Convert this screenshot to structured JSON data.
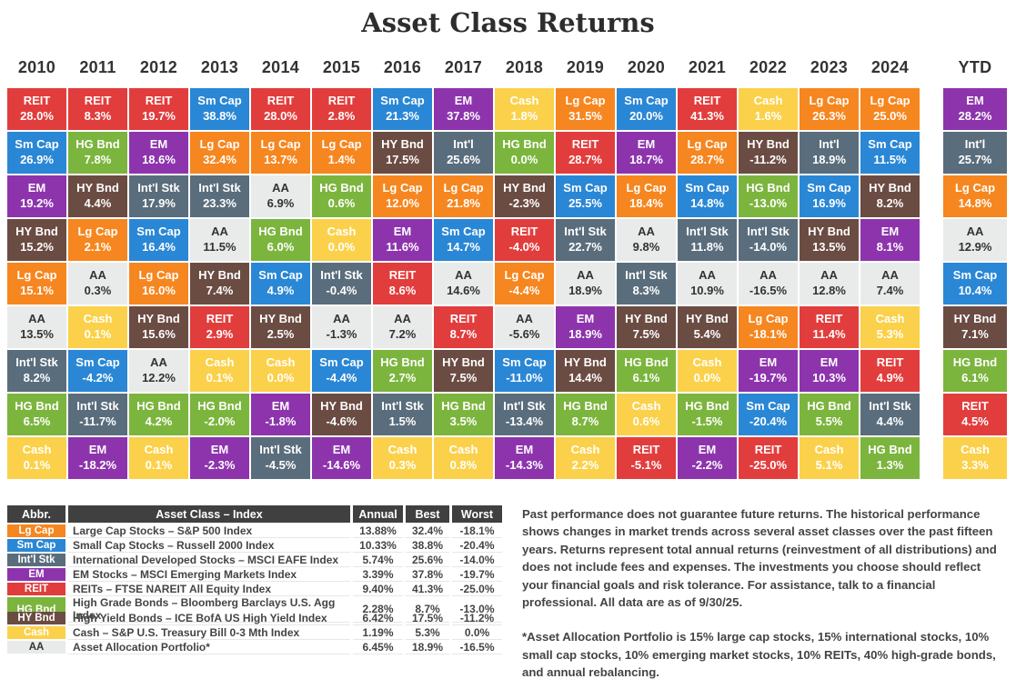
{
  "page_title": "Asset Class Returns",
  "chart_data": {
    "type": "heatmap",
    "title": "Asset Class Returns",
    "description": "Periodic table of annual asset class total returns, ranked best to worst within each year, 2010-2024 plus YTD as of 9/30/25",
    "assets": {
      "lg_cap": {
        "label": "Lg Cap",
        "bg": "#f6861f",
        "fg": "#ffffff"
      },
      "sm_cap": {
        "label": "Sm Cap",
        "bg": "#2a87d5",
        "fg": "#ffffff"
      },
      "intl_stk": {
        "label": "Int'l Stk",
        "bg": "#5a6d7c",
        "fg": "#ffffff"
      },
      "em": {
        "label": "EM",
        "bg": "#8d34ad",
        "fg": "#ffffff"
      },
      "reit": {
        "label": "REIT",
        "bg": "#e23d3d",
        "fg": "#ffffff"
      },
      "hg_bnd": {
        "label": "HG Bnd",
        "bg": "#7cb53e",
        "fg": "#ffffff"
      },
      "hy_bnd": {
        "label": "HY Bnd",
        "bg": "#6b4c43",
        "fg": "#ffffff"
      },
      "cash": {
        "label": "Cash",
        "bg": "#fbd14b",
        "fg": "#ffffff"
      },
      "aa": {
        "label": "AA",
        "bg": "#e9eaea",
        "fg": "#333333"
      }
    },
    "columns": [
      {
        "year": "2010",
        "cells": [
          {
            "asset": "reit",
            "value": "28.0%"
          },
          {
            "asset": "sm_cap",
            "value": "26.9%"
          },
          {
            "asset": "em",
            "value": "19.2%"
          },
          {
            "asset": "hy_bnd",
            "value": "15.2%"
          },
          {
            "asset": "lg_cap",
            "value": "15.1%"
          },
          {
            "asset": "aa",
            "value": "13.5%"
          },
          {
            "asset": "intl_stk",
            "value": "8.2%"
          },
          {
            "asset": "hg_bnd",
            "value": "6.5%"
          },
          {
            "asset": "cash",
            "value": "0.1%"
          }
        ]
      },
      {
        "year": "2011",
        "cells": [
          {
            "asset": "reit",
            "value": "8.3%"
          },
          {
            "asset": "hg_bnd",
            "value": "7.8%"
          },
          {
            "asset": "hy_bnd",
            "value": "4.4%"
          },
          {
            "asset": "lg_cap",
            "value": "2.1%"
          },
          {
            "asset": "aa",
            "value": "0.3%"
          },
          {
            "asset": "cash",
            "value": "0.1%"
          },
          {
            "asset": "sm_cap",
            "value": "-4.2%"
          },
          {
            "asset": "intl_stk",
            "value": "-11.7%"
          },
          {
            "asset": "em",
            "value": "-18.2%"
          }
        ]
      },
      {
        "year": "2012",
        "cells": [
          {
            "asset": "reit",
            "value": "19.7%"
          },
          {
            "asset": "em",
            "value": "18.6%"
          },
          {
            "asset": "intl_stk",
            "value": "17.9%"
          },
          {
            "asset": "sm_cap",
            "value": "16.4%"
          },
          {
            "asset": "lg_cap",
            "value": "16.0%"
          },
          {
            "asset": "hy_bnd",
            "value": "15.6%"
          },
          {
            "asset": "aa",
            "value": "12.2%"
          },
          {
            "asset": "hg_bnd",
            "value": "4.2%"
          },
          {
            "asset": "cash",
            "value": "0.1%"
          }
        ]
      },
      {
        "year": "2013",
        "cells": [
          {
            "asset": "sm_cap",
            "value": "38.8%"
          },
          {
            "asset": "lg_cap",
            "value": "32.4%"
          },
          {
            "asset": "intl_stk",
            "value": "23.3%"
          },
          {
            "asset": "aa",
            "value": "11.5%"
          },
          {
            "asset": "hy_bnd",
            "value": "7.4%"
          },
          {
            "asset": "reit",
            "value": "2.9%"
          },
          {
            "asset": "cash",
            "value": "0.1%"
          },
          {
            "asset": "hg_bnd",
            "value": "-2.0%"
          },
          {
            "asset": "em",
            "value": "-2.3%"
          }
        ]
      },
      {
        "year": "2014",
        "cells": [
          {
            "asset": "reit",
            "value": "28.0%"
          },
          {
            "asset": "lg_cap",
            "value": "13.7%"
          },
          {
            "asset": "aa",
            "value": "6.9%"
          },
          {
            "asset": "hg_bnd",
            "value": "6.0%"
          },
          {
            "asset": "sm_cap",
            "value": "4.9%"
          },
          {
            "asset": "hy_bnd",
            "value": "2.5%"
          },
          {
            "asset": "cash",
            "value": "0.0%"
          },
          {
            "asset": "em",
            "value": "-1.8%"
          },
          {
            "asset": "intl_stk",
            "value": "-4.5%"
          }
        ]
      },
      {
        "year": "2015",
        "cells": [
          {
            "asset": "reit",
            "value": "2.8%"
          },
          {
            "asset": "lg_cap",
            "value": "1.4%"
          },
          {
            "asset": "hg_bnd",
            "value": "0.6%"
          },
          {
            "asset": "cash",
            "value": "0.0%"
          },
          {
            "asset": "intl_stk",
            "value": "-0.4%"
          },
          {
            "asset": "aa",
            "value": "-1.3%"
          },
          {
            "asset": "sm_cap",
            "value": "-4.4%"
          },
          {
            "asset": "hy_bnd",
            "value": "-4.6%"
          },
          {
            "asset": "em",
            "value": "-14.6%"
          }
        ]
      },
      {
        "year": "2016",
        "cells": [
          {
            "asset": "sm_cap",
            "value": "21.3%"
          },
          {
            "asset": "hy_bnd",
            "value": "17.5%"
          },
          {
            "asset": "lg_cap",
            "value": "12.0%"
          },
          {
            "asset": "em",
            "value": "11.6%"
          },
          {
            "asset": "reit",
            "value": "8.6%"
          },
          {
            "asset": "aa",
            "value": "7.2%"
          },
          {
            "asset": "hg_bnd",
            "value": "2.7%"
          },
          {
            "asset": "intl_stk",
            "value": "1.5%"
          },
          {
            "asset": "cash",
            "value": "0.3%"
          }
        ]
      },
      {
        "year": "2017",
        "cells": [
          {
            "asset": "em",
            "value": "37.8%"
          },
          {
            "asset": "intl_stk",
            "label": "Int'l",
            "value": "25.6%"
          },
          {
            "asset": "lg_cap",
            "value": "21.8%"
          },
          {
            "asset": "sm_cap",
            "value": "14.7%"
          },
          {
            "asset": "aa",
            "value": "14.6%"
          },
          {
            "asset": "reit",
            "value": "8.7%"
          },
          {
            "asset": "hy_bnd",
            "value": "7.5%"
          },
          {
            "asset": "hg_bnd",
            "value": "3.5%"
          },
          {
            "asset": "cash",
            "value": "0.8%"
          }
        ]
      },
      {
        "year": "2018",
        "cells": [
          {
            "asset": "cash",
            "value": "1.8%"
          },
          {
            "asset": "hg_bnd",
            "value": "0.0%"
          },
          {
            "asset": "hy_bnd",
            "value": "-2.3%"
          },
          {
            "asset": "reit",
            "value": "-4.0%"
          },
          {
            "asset": "lg_cap",
            "value": "-4.4%"
          },
          {
            "asset": "aa",
            "value": "-5.6%"
          },
          {
            "asset": "sm_cap",
            "value": "-11.0%"
          },
          {
            "asset": "intl_stk",
            "value": "-13.4%"
          },
          {
            "asset": "em",
            "value": "-14.3%"
          }
        ]
      },
      {
        "year": "2019",
        "cells": [
          {
            "asset": "lg_cap",
            "value": "31.5%"
          },
          {
            "asset": "reit",
            "value": "28.7%"
          },
          {
            "asset": "sm_cap",
            "value": "25.5%"
          },
          {
            "asset": "intl_stk",
            "value": "22.7%"
          },
          {
            "asset": "aa",
            "value": "18.9%"
          },
          {
            "asset": "em",
            "value": "18.9%"
          },
          {
            "asset": "hy_bnd",
            "value": "14.4%"
          },
          {
            "asset": "hg_bnd",
            "value": "8.7%"
          },
          {
            "asset": "cash",
            "value": "2.2%"
          }
        ]
      },
      {
        "year": "2020",
        "cells": [
          {
            "asset": "sm_cap",
            "value": "20.0%"
          },
          {
            "asset": "em",
            "value": "18.7%"
          },
          {
            "asset": "lg_cap",
            "value": "18.4%"
          },
          {
            "asset": "aa",
            "value": "9.8%"
          },
          {
            "asset": "intl_stk",
            "value": "8.3%"
          },
          {
            "asset": "hy_bnd",
            "value": "7.5%"
          },
          {
            "asset": "hg_bnd",
            "value": "6.1%"
          },
          {
            "asset": "cash",
            "value": "0.6%"
          },
          {
            "asset": "reit",
            "value": "-5.1%"
          }
        ]
      },
      {
        "year": "2021",
        "cells": [
          {
            "asset": "reit",
            "value": "41.3%"
          },
          {
            "asset": "lg_cap",
            "value": "28.7%"
          },
          {
            "asset": "sm_cap",
            "value": "14.8%"
          },
          {
            "asset": "intl_stk",
            "value": "11.8%"
          },
          {
            "asset": "aa",
            "value": "10.9%"
          },
          {
            "asset": "hy_bnd",
            "value": "5.4%"
          },
          {
            "asset": "cash",
            "value": "0.0%"
          },
          {
            "asset": "hg_bnd",
            "value": "-1.5%"
          },
          {
            "asset": "em",
            "value": "-2.2%"
          }
        ]
      },
      {
        "year": "2022",
        "cells": [
          {
            "asset": "cash",
            "value": "1.6%"
          },
          {
            "asset": "hy_bnd",
            "value": "-11.2%"
          },
          {
            "asset": "hg_bnd",
            "value": "-13.0%"
          },
          {
            "asset": "intl_stk",
            "value": "-14.0%"
          },
          {
            "asset": "aa",
            "value": "-16.5%"
          },
          {
            "asset": "lg_cap",
            "value": "-18.1%"
          },
          {
            "asset": "em",
            "value": "-19.7%"
          },
          {
            "asset": "sm_cap",
            "value": "-20.4%"
          },
          {
            "asset": "reit",
            "value": "-25.0%"
          }
        ]
      },
      {
        "year": "2023",
        "cells": [
          {
            "asset": "lg_cap",
            "value": "26.3%"
          },
          {
            "asset": "intl_stk",
            "label": "Int'l",
            "value": "18.9%"
          },
          {
            "asset": "sm_cap",
            "value": "16.9%"
          },
          {
            "asset": "hy_bnd",
            "value": "13.5%"
          },
          {
            "asset": "aa",
            "value": "12.8%"
          },
          {
            "asset": "reit",
            "value": "11.4%"
          },
          {
            "asset": "em",
            "value": "10.3%"
          },
          {
            "asset": "hg_bnd",
            "value": "5.5%"
          },
          {
            "asset": "cash",
            "value": "5.1%"
          }
        ]
      },
      {
        "year": "2024",
        "cells": [
          {
            "asset": "lg_cap",
            "value": "25.0%"
          },
          {
            "asset": "sm_cap",
            "value": "11.5%"
          },
          {
            "asset": "hy_bnd",
            "value": "8.2%"
          },
          {
            "asset": "em",
            "value": "8.1%"
          },
          {
            "asset": "aa",
            "value": "7.4%"
          },
          {
            "asset": "cash",
            "value": "5.3%"
          },
          {
            "asset": "reit",
            "value": "4.9%"
          },
          {
            "asset": "intl_stk",
            "value": "4.4%"
          },
          {
            "asset": "hg_bnd",
            "value": "1.3%"
          }
        ]
      },
      {
        "year": "YTD",
        "cells": [
          {
            "asset": "em",
            "value": "28.2%"
          },
          {
            "asset": "intl_stk",
            "label": "Int'l",
            "value": "25.7%"
          },
          {
            "asset": "lg_cap",
            "value": "14.8%"
          },
          {
            "asset": "aa",
            "value": "12.9%"
          },
          {
            "asset": "sm_cap",
            "value": "10.4%"
          },
          {
            "asset": "hy_bnd",
            "value": "7.1%"
          },
          {
            "asset": "hg_bnd",
            "value": "6.1%"
          },
          {
            "asset": "reit",
            "value": "4.5%"
          },
          {
            "asset": "cash",
            "value": "3.3%"
          }
        ]
      }
    ],
    "legend": {
      "headers": [
        "Abbr.",
        "Asset Class – Index",
        "Annual",
        "Best",
        "Worst"
      ],
      "rows": [
        {
          "asset": "lg_cap",
          "abbr": "Lg Cap",
          "name": "Large Cap Stocks – S&P 500 Index",
          "annual": "13.88%",
          "best": "32.4%",
          "worst": "-18.1%"
        },
        {
          "asset": "sm_cap",
          "abbr": "Sm Cap",
          "name": "Small Cap Stocks – Russell 2000 Index",
          "annual": "10.33%",
          "best": "38.8%",
          "worst": "-20.4%"
        },
        {
          "asset": "intl_stk",
          "abbr": "Int'l Stk",
          "name": "International Developed Stocks – MSCI EAFE Index",
          "annual": "5.74%",
          "best": "25.6%",
          "worst": "-14.0%"
        },
        {
          "asset": "em",
          "abbr": "EM",
          "name": "EM Stocks – MSCI Emerging Markets Index",
          "annual": "3.39%",
          "best": "37.8%",
          "worst": "-19.7%"
        },
        {
          "asset": "reit",
          "abbr": "REIT",
          "name": "REITs – FTSE NAREIT All Equity Index",
          "annual": "9.40%",
          "best": "41.3%",
          "worst": "-25.0%"
        },
        {
          "asset": "hg_bnd",
          "abbr": "HG Bnd",
          "name": "High Grade Bonds – Bloomberg Barclays U.S. Agg Index",
          "annual": "2.28%",
          "best": "8.7%",
          "worst": "-13.0%"
        },
        {
          "asset": "hy_bnd",
          "abbr": "HY Bnd",
          "name": "High Yield Bonds – ICE BofA US High Yield Index",
          "annual": "6.42%",
          "best": "17.5%",
          "worst": "-11.2%"
        },
        {
          "asset": "cash",
          "abbr": "Cash",
          "name": "Cash – S&P U.S. Treasury Bill 0-3 Mth Index",
          "annual": "1.19%",
          "best": "5.3%",
          "worst": "0.0%"
        },
        {
          "asset": "aa",
          "abbr": "AA",
          "name": "Asset Allocation Portfolio*",
          "annual": "6.45%",
          "best": "18.9%",
          "worst": "-16.5%"
        }
      ]
    }
  },
  "notes": {
    "p1": "Past performance does not guarantee future returns. The historical performance shows changes in market trends across several asset classes over the past fifteen years. Returns represent total annual returns (reinvestment of all distributions) and does not include fees and expenses. The investments you choose should reflect your financial goals and risk tolerance. For assistance, talk to a financial professional. All data are as of 9/30/25.",
    "p2": "*Asset Allocation Portfolio is 15% large cap stocks, 15% international stocks, 10% small cap stocks, 10% emerging market stocks, 10% REITs, 40% high-grade bonds, and annual rebalancing."
  }
}
